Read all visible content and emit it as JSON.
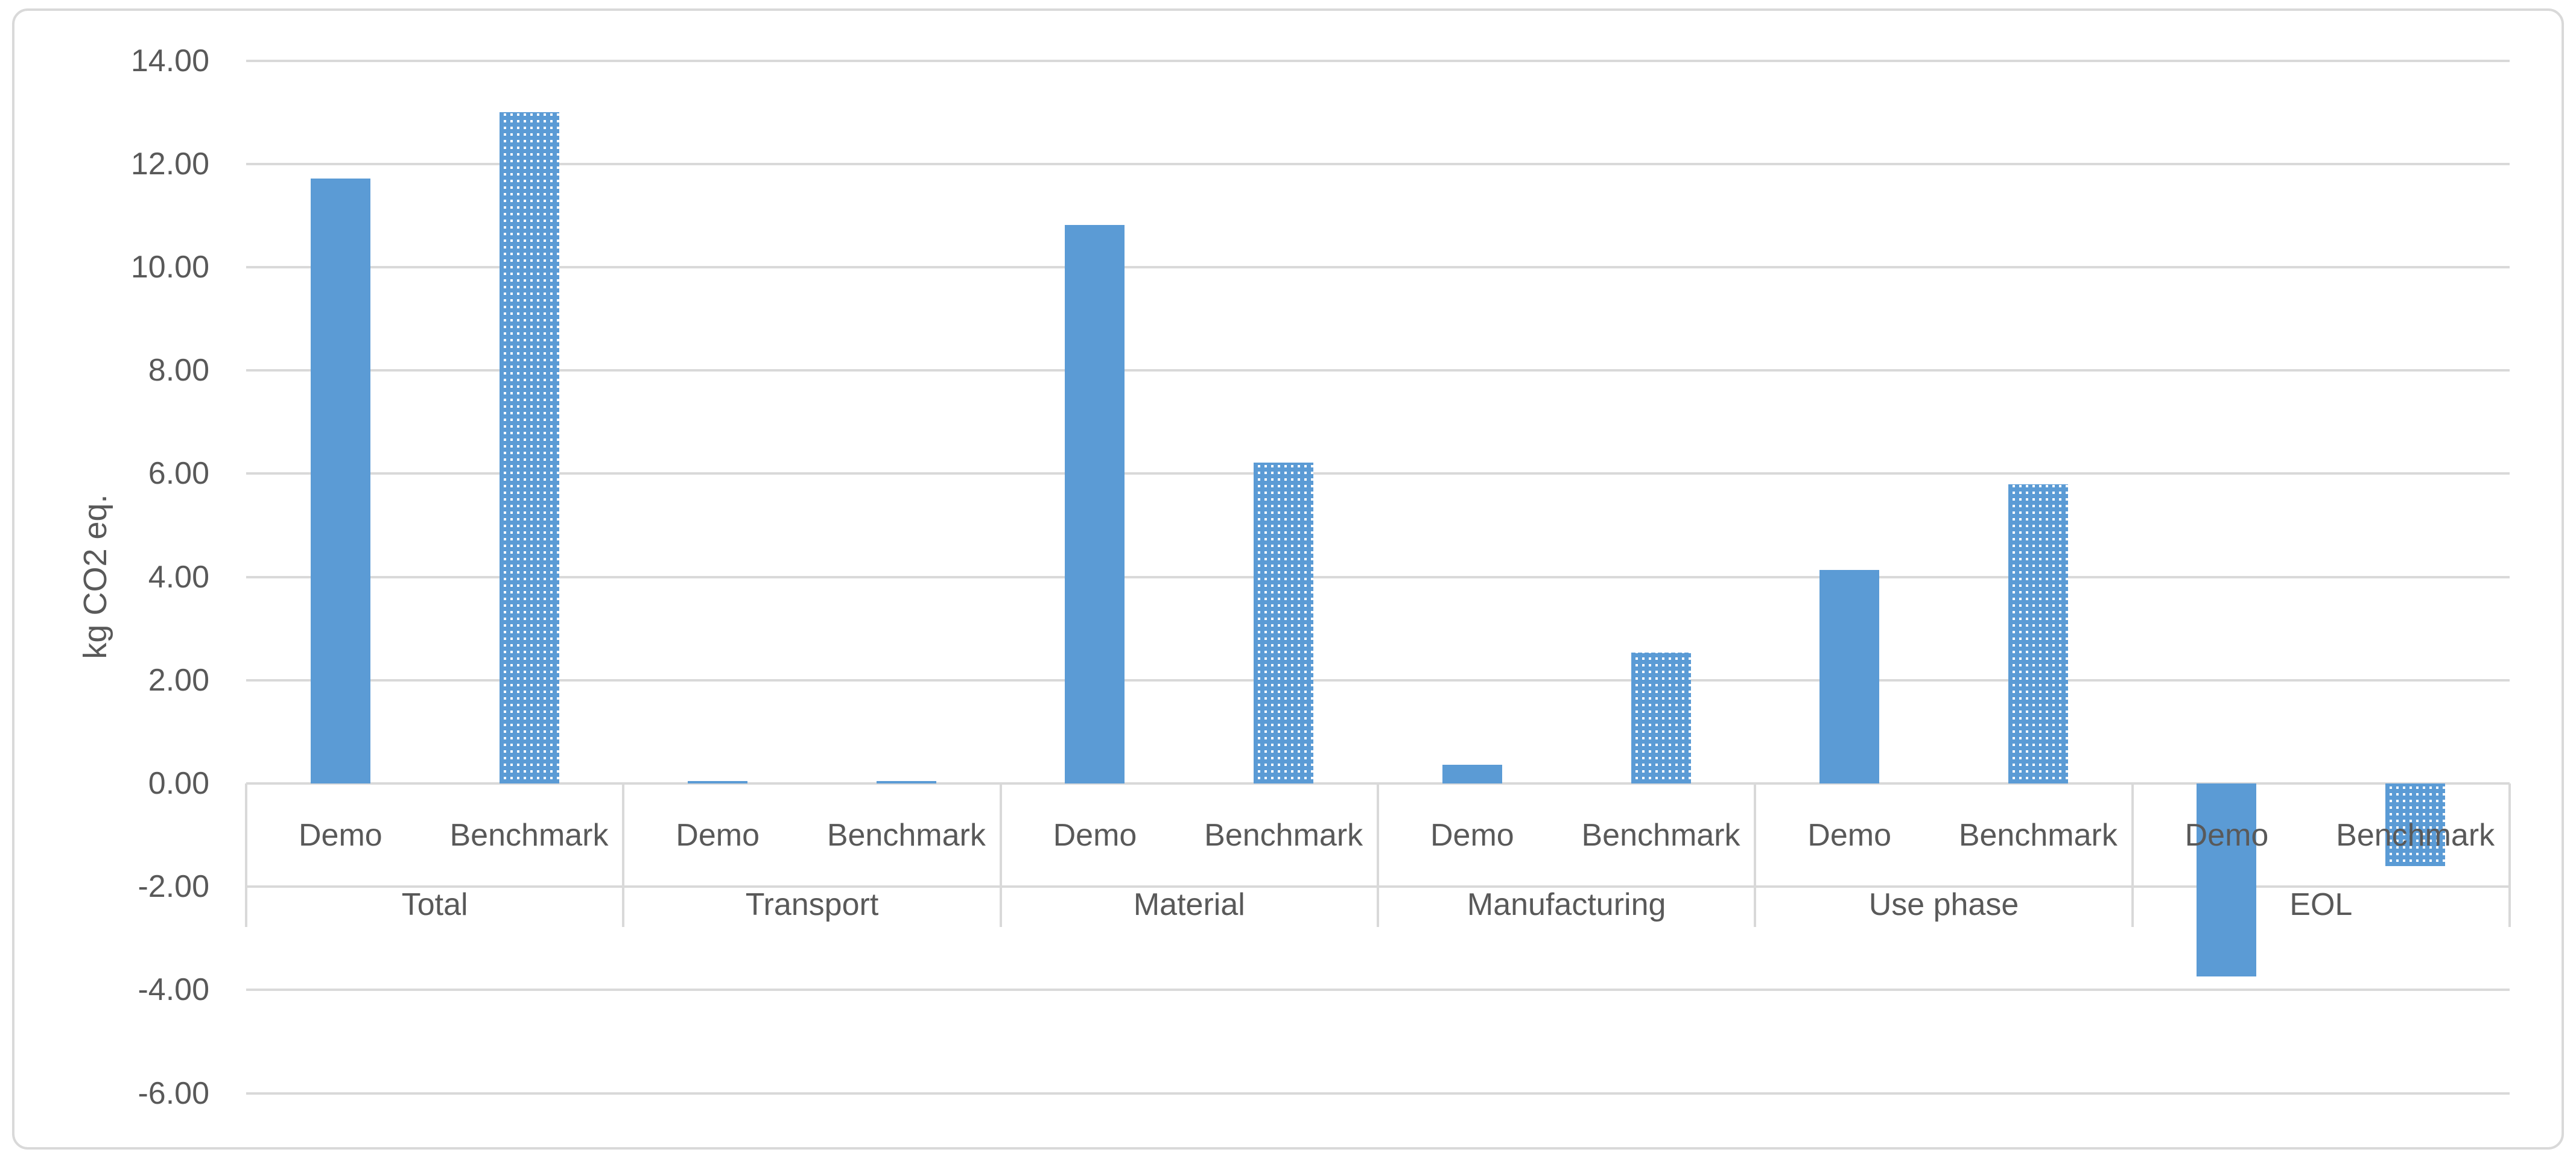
{
  "chart_data": {
    "type": "bar",
    "title": "",
    "ylabel": "kg CO2 eq.",
    "xlabel": "",
    "ylim": [
      -6,
      14
    ],
    "grid": true,
    "legend": "none",
    "categories": [
      "Total",
      "Transport",
      "Material",
      "Manufacturing",
      "Use phase",
      "EOL"
    ],
    "inner_labels": [
      "Demo",
      "Benchmark"
    ],
    "series": [
      {
        "name": "Demo",
        "fill": "solid",
        "values": [
          11.72,
          0.05,
          10.82,
          0.36,
          4.13,
          -3.74
        ]
      },
      {
        "name": "Benchmark",
        "fill": "pattern",
        "values": [
          13.0,
          0.05,
          6.21,
          2.54,
          5.8,
          -1.6
        ]
      }
    ],
    "yticks": [
      {
        "value": 14,
        "label": "14.00"
      },
      {
        "value": 12,
        "label": "12.00"
      },
      {
        "value": 10,
        "label": "10.00"
      },
      {
        "value": 8,
        "label": "8.00"
      },
      {
        "value": 6,
        "label": "6.00"
      },
      {
        "value": 4,
        "label": "4.00"
      },
      {
        "value": 2,
        "label": "2.00"
      },
      {
        "value": 0,
        "label": "0.00"
      },
      {
        "value": -2,
        "label": "-2.00"
      },
      {
        "value": -4,
        "label": "-4.00"
      },
      {
        "value": -6,
        "label": "-6.00"
      }
    ],
    "colors": {
      "bar_fill": "#5B9BD5",
      "pattern_bg": "#FFFFFF",
      "gridline": "#D9D9D9",
      "axis_text": "#595959",
      "frame_border": "#D9D9D9"
    }
  }
}
